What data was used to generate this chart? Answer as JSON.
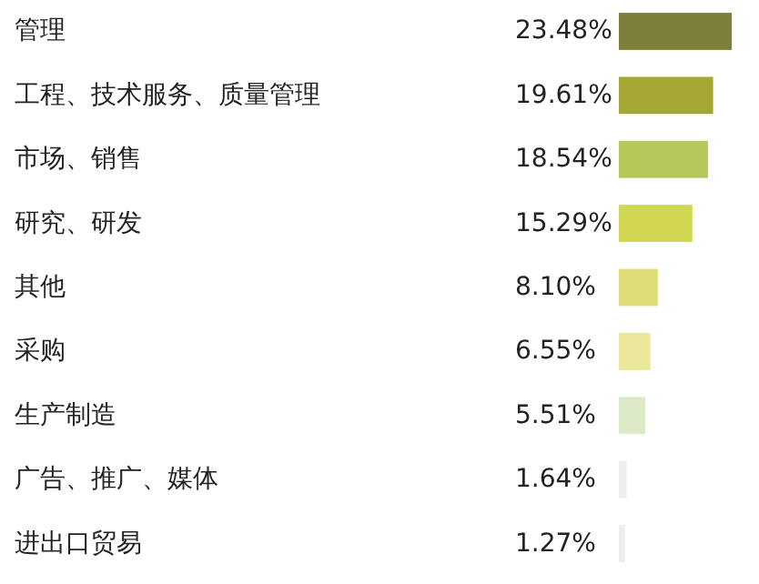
{
  "chart_data": {
    "type": "bar",
    "orientation": "horizontal",
    "categories": [
      "管理",
      "工程、技术服务、质量管理",
      "市场、销售",
      "研究、研发",
      "其他",
      "采购",
      "生产制造",
      "广告、推广、媒体",
      "进出口贸易"
    ],
    "values": [
      23.48,
      19.61,
      18.54,
      15.29,
      8.1,
      6.55,
      5.51,
      1.64,
      1.27
    ],
    "value_labels": [
      "23.48%",
      "19.61%",
      "18.54%",
      "15.29%",
      "8.10%",
      "6.55%",
      "5.51%",
      "1.64%",
      "1.27%"
    ],
    "colors": [
      "#7f7f3c",
      "#a3a834",
      "#b5c95a",
      "#cfd650",
      "#dbde78",
      "#e8e79a",
      "#dbe9c4",
      "#eeeeee",
      "#eeeeee"
    ]
  }
}
